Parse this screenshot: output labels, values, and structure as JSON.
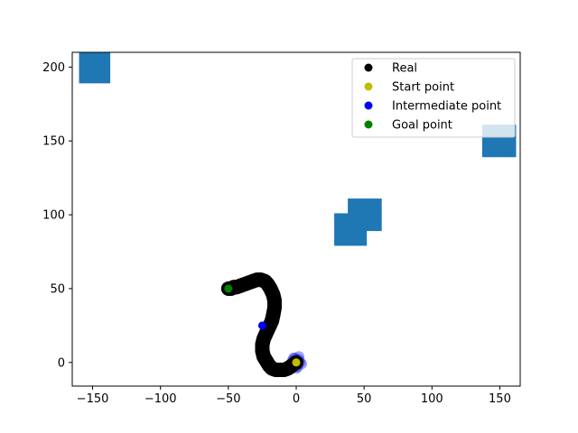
{
  "chart_data": {
    "type": "scatter",
    "title": "",
    "xlabel": "",
    "ylabel": "",
    "xlim": [
      -165,
      165
    ],
    "ylim": [
      -16,
      210
    ],
    "grid": false,
    "legend_position": "top-right",
    "xticks": [
      -150,
      -100,
      -50,
      0,
      50,
      100,
      150
    ],
    "yticks": [
      0,
      50,
      100,
      150,
      200
    ],
    "xtick_labels": [
      "−150",
      "−100",
      "−50",
      "0",
      "50",
      "100",
      "150"
    ],
    "ytick_labels": [
      "0",
      "50",
      "100",
      "150",
      "200"
    ],
    "obstacles": [
      {
        "x0": -160,
        "x1": -137,
        "y0": 189,
        "y1": 210,
        "color": "#1f77b4"
      },
      {
        "x0": 28,
        "x1": 52,
        "y0": 79,
        "y1": 101,
        "color": "#1f77b4"
      },
      {
        "x0": 38,
        "x1": 63,
        "y0": 89,
        "y1": 111,
        "color": "#1f77b4"
      },
      {
        "x0": 137,
        "x1": 162,
        "y0": 139,
        "y1": 161,
        "color": "#1f77b4"
      }
    ],
    "series": [
      {
        "name": "Real",
        "color": "#000000",
        "x": [
          0,
          -3,
          -6,
          -9,
          -12,
          -15,
          -18,
          -20,
          -22,
          -24,
          -25,
          -25,
          -24,
          -22,
          -20,
          -18,
          -17,
          -16,
          -16,
          -17,
          -19,
          -21,
          -23,
          -26,
          -29,
          -32,
          -35,
          -38,
          -41,
          -44,
          -46,
          -48,
          -50
        ],
        "y": [
          0,
          -2,
          -4,
          -5,
          -5,
          -5,
          -4,
          -2,
          1,
          4,
          8,
          12,
          16,
          20,
          24,
          28,
          32,
          37,
          42,
          46,
          50,
          53,
          55,
          56,
          56,
          55,
          54,
          53,
          52,
          51,
          51,
          50,
          50
        ]
      },
      {
        "name": "Start point",
        "color": "#bfbf00",
        "x": [
          0
        ],
        "y": [
          0
        ]
      },
      {
        "name": "Intermediate point",
        "color": "#0000ff",
        "x": [
          -25
        ],
        "y": [
          25
        ]
      },
      {
        "name": "Goal point",
        "color": "#008000",
        "x": [
          -50
        ],
        "y": [
          50
        ]
      }
    ],
    "start_cloud": {
      "color": "#0000ff",
      "x": [
        0,
        2,
        -2,
        3,
        -3,
        1,
        -1,
        4,
        -4,
        2,
        -2,
        0
      ],
      "y": [
        0,
        2,
        -2,
        0,
        1,
        -3,
        3,
        -1,
        -2,
        4,
        3,
        -4
      ]
    }
  }
}
